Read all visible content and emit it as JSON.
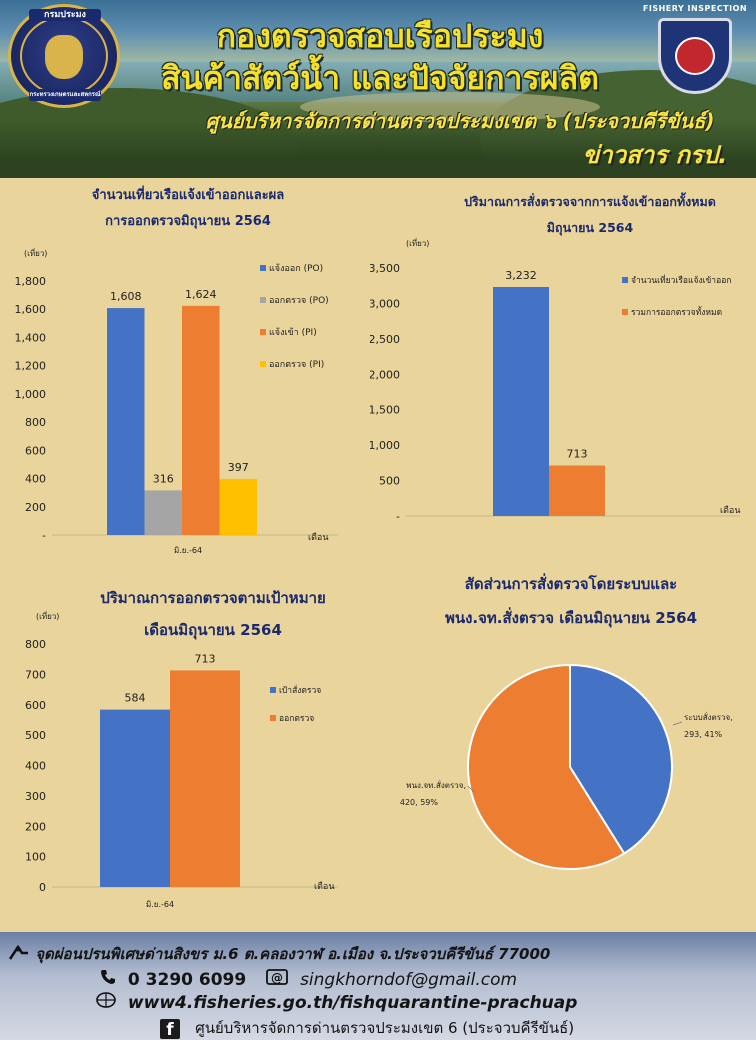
{
  "header": {
    "title_line1": "กองตรวจสอบเรือประมง",
    "title_line2": "สินค้าสัตว์น้ำ และปัจจัยการผลิต",
    "title_line3": "ศูนย์บริหารจัดการด่านตรวจประมงเขต ๖ (ประจวบคีรีขันธ์)",
    "title_line4": "ข่าวสาร กรป.",
    "logo_left_top": "กรมประมง",
    "logo_left_bottom": "กระทรวงเกษตรและสหกรณ์",
    "logo_right_text": "FISHERY INSPECTION"
  },
  "colors": {
    "blue": "#4472c4",
    "gray": "#a5a5a5",
    "orange": "#ed7d31",
    "yellow": "#ffc000",
    "title": "#1b2a6e"
  },
  "chart_data": [
    {
      "type": "bar",
      "title_line1": "จำนวนเที่ยวเรือแจ้งเข้าออกและผล",
      "title_line2": "การออกตรวจมิถุนายน 2564",
      "unit_label": "(เที่ยว)",
      "xlabel": "เดือน",
      "categories": [
        "มิ.ย.-64"
      ],
      "series": [
        {
          "name": "แจ้งออก (PO)",
          "values": [
            1608
          ],
          "label": "1,608"
        },
        {
          "name": "ออกตรวจ (PO)",
          "values": [
            316
          ],
          "label": "316"
        },
        {
          "name": "แจ้งเข้า (PI)",
          "values": [
            1624
          ],
          "label": "1,624"
        },
        {
          "name": "ออกตรวจ (PI)",
          "values": [
            397
          ],
          "label": "397"
        }
      ],
      "ylim": [
        0,
        1800
      ],
      "yticks": [
        "-",
        "200",
        "400",
        "600",
        "800",
        "1,000",
        "1,200",
        "1,400",
        "1,600",
        "1,800"
      ]
    },
    {
      "type": "bar",
      "title_line1": "ปริมาณการสั่งตรวจจากการแจ้งเข้าออกทั้งหมด",
      "title_line2": "มิถุนายน 2564",
      "unit_label": "(เที่ยว)",
      "xlabel": "เดือน",
      "categories": [
        "มิ.ย.-64"
      ],
      "series": [
        {
          "name": "จำนวนเที่ยวเรือแจ้งเข้าออก",
          "values": [
            3232
          ],
          "label": "3,232"
        },
        {
          "name": "รวมการออกตรวจทั้งหมด",
          "values": [
            713
          ],
          "label": "713"
        }
      ],
      "ylim": [
        0,
        3500
      ],
      "yticks": [
        "-",
        "500",
        "1,000",
        "1,500",
        "2,000",
        "2,500",
        "3,000",
        "3,500"
      ]
    },
    {
      "type": "bar",
      "title_line1": "ปริมาณการออกตรวจตามเป้าหมาย",
      "title_line2": "เดือนมิถุนายน 2564",
      "unit_label": "(เที่ยว)",
      "xlabel": "เดือน",
      "categories": [
        "มิ.ย.-64"
      ],
      "series": [
        {
          "name": "เป้าสั่งตรวจ",
          "values": [
            584
          ],
          "label": "584"
        },
        {
          "name": "ออกตรวจ",
          "values": [
            713
          ],
          "label": "713"
        }
      ],
      "ylim": [
        0,
        800
      ],
      "yticks": [
        "0",
        "100",
        "200",
        "300",
        "400",
        "500",
        "600",
        "700",
        "800"
      ]
    },
    {
      "type": "pie",
      "title_line1": "สัดส่วนการสั่งตรวจโดยระบบและ",
      "title_line2": "พนง.จท.สั่งตรวจ เดือนมิถุนายน 2564",
      "slices": [
        {
          "name": "ระบบสั่งตรวจ",
          "value": 293,
          "percent": 41,
          "label_line1": "ระบบสั่งตรวจ,",
          "label_line2": "293, 41%"
        },
        {
          "name": "พนง.จท.สั่งตรวจ",
          "value": 420,
          "percent": 59,
          "label_line1": "พนง.จท.สั่งตรวจ,",
          "label_line2": "420, 59%"
        }
      ]
    }
  ],
  "footer": {
    "address": "จุดผ่อนปรนพิเศษด่านสิงขร ม.6 ต.คลองวาฬ อ.เมือง จ.ประจวบคีรีขันธ์ 77000",
    "phone": "0 3290 6099",
    "email": "singkhorndof@gmail.com",
    "website": "www4.fisheries.go.th/fishquarantine-prachuap",
    "facebook": "ศูนย์บริหารจัดการด่านตรวจประมงเขต 6 (ประจวบคีรีขันธ์)"
  }
}
